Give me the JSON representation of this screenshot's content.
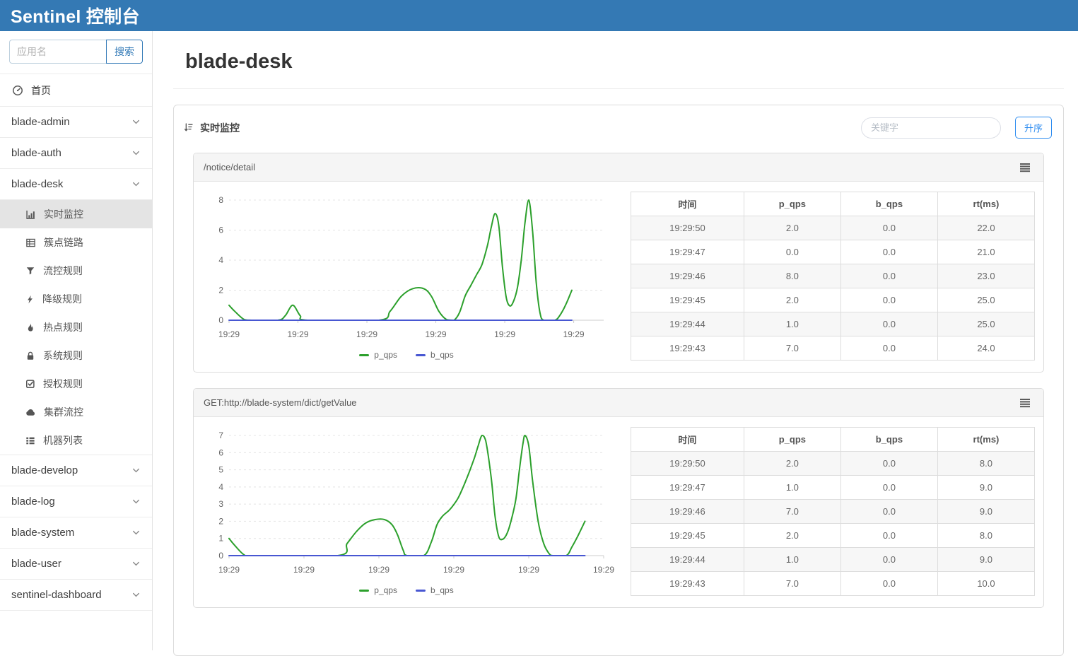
{
  "navbar": {
    "title": "Sentinel 控制台",
    "bg_color": "#3479b4"
  },
  "sidebar": {
    "search": {
      "placeholder": "应用名",
      "button_label": "搜索"
    },
    "home": {
      "label": "首页",
      "icon": "gauge-icon"
    },
    "apps": [
      {
        "label": "blade-admin",
        "expanded": false
      },
      {
        "label": "blade-auth",
        "expanded": false
      },
      {
        "label": "blade-desk",
        "expanded": true,
        "children": [
          {
            "label": "实时监控",
            "icon": "bar-chart-icon",
            "active": true
          },
          {
            "label": "簇点链路",
            "icon": "table-icon",
            "active": false
          },
          {
            "label": "流控规则",
            "icon": "filter-icon",
            "active": false
          },
          {
            "label": "降级规则",
            "icon": "bolt-icon",
            "active": false
          },
          {
            "label": "热点规则",
            "icon": "flame-icon",
            "active": false
          },
          {
            "label": "系统规则",
            "icon": "lock-icon",
            "active": false
          },
          {
            "label": "授权规则",
            "icon": "check-square-icon",
            "active": false
          },
          {
            "label": "集群流控",
            "icon": "cloud-icon",
            "active": false
          },
          {
            "label": "机器列表",
            "icon": "list-icon",
            "active": false
          }
        ]
      },
      {
        "label": "blade-develop",
        "expanded": false
      },
      {
        "label": "blade-log",
        "expanded": false
      },
      {
        "label": "blade-system",
        "expanded": false
      },
      {
        "label": "blade-user",
        "expanded": false
      },
      {
        "label": "sentinel-dashboard",
        "expanded": false
      }
    ]
  },
  "main": {
    "page_title": "blade-desk",
    "panel": {
      "title": "实时监控",
      "keyword_placeholder": "关键字",
      "sort_button_label": "升序"
    },
    "cards": [
      {
        "title": "/notice/detail",
        "chart_index": 0,
        "table": {
          "headers": [
            "时间",
            "p_qps",
            "b_qps",
            "rt(ms)"
          ],
          "rows": [
            [
              "19:29:50",
              "2.0",
              "0.0",
              "22.0"
            ],
            [
              "19:29:47",
              "0.0",
              "0.0",
              "21.0"
            ],
            [
              "19:29:46",
              "8.0",
              "0.0",
              "23.0"
            ],
            [
              "19:29:45",
              "2.0",
              "0.0",
              "25.0"
            ],
            [
              "19:29:44",
              "1.0",
              "0.0",
              "25.0"
            ],
            [
              "19:29:43",
              "7.0",
              "0.0",
              "24.0"
            ]
          ]
        }
      },
      {
        "title": "GET:http://blade-system/dict/getValue",
        "chart_index": 1,
        "table": {
          "headers": [
            "时间",
            "p_qps",
            "b_qps",
            "rt(ms)"
          ],
          "rows": [
            [
              "19:29:50",
              "2.0",
              "0.0",
              "8.0"
            ],
            [
              "19:29:47",
              "1.0",
              "0.0",
              "9.0"
            ],
            [
              "19:29:46",
              "7.0",
              "0.0",
              "9.0"
            ],
            [
              "19:29:45",
              "2.0",
              "0.0",
              "8.0"
            ],
            [
              "19:29:44",
              "1.0",
              "0.0",
              "9.0"
            ],
            [
              "19:29:43",
              "7.0",
              "0.0",
              "10.0"
            ]
          ]
        }
      }
    ]
  },
  "chart_data": [
    {
      "type": "line",
      "title": "/notice/detail",
      "xlabel": "",
      "ylabel": "",
      "x_axis_labels": [
        "19:29",
        "19:29",
        "19:29",
        "19:29",
        "19:29",
        "19:29"
      ],
      "x_label_span": 0.92,
      "ylim": [
        0,
        8
      ],
      "y_ticks": [
        0,
        2,
        4,
        6,
        8
      ],
      "grid": "dashed-horizontal",
      "legend_position": "bottom",
      "series": [
        {
          "name": "p_qps",
          "color": "#2ca02c",
          "points": [
            [
              0.0,
              1.0
            ],
            [
              0.015,
              0.6
            ],
            [
              0.04,
              0.05
            ],
            [
              0.06,
              0.0
            ],
            [
              0.13,
              0.0
            ],
            [
              0.15,
              0.3
            ],
            [
              0.17,
              1.0
            ],
            [
              0.19,
              0.3
            ],
            [
              0.21,
              0.0
            ],
            [
              0.4,
              0.0
            ],
            [
              0.43,
              0.6
            ],
            [
              0.46,
              1.6
            ],
            [
              0.49,
              2.1
            ],
            [
              0.52,
              2.1
            ],
            [
              0.54,
              1.6
            ],
            [
              0.56,
              0.6
            ],
            [
              0.58,
              0.05
            ],
            [
              0.6,
              0.0
            ],
            [
              0.615,
              0.5
            ],
            [
              0.63,
              1.6
            ],
            [
              0.645,
              2.3
            ],
            [
              0.66,
              3.0
            ],
            [
              0.675,
              3.7
            ],
            [
              0.69,
              5.0
            ],
            [
              0.7,
              6.2
            ],
            [
              0.71,
              7.1
            ],
            [
              0.72,
              6.3
            ],
            [
              0.73,
              3.5
            ],
            [
              0.74,
              1.5
            ],
            [
              0.75,
              0.95
            ],
            [
              0.76,
              1.3
            ],
            [
              0.77,
              2.2
            ],
            [
              0.78,
              4.0
            ],
            [
              0.79,
              6.5
            ],
            [
              0.8,
              8.0
            ],
            [
              0.81,
              6.0
            ],
            [
              0.82,
              2.5
            ],
            [
              0.83,
              0.5
            ],
            [
              0.84,
              0.0
            ],
            [
              0.87,
              0.0
            ],
            [
              0.885,
              0.4
            ],
            [
              0.9,
              1.1
            ],
            [
              0.915,
              2.0
            ]
          ]
        },
        {
          "name": "b_qps",
          "color": "#4857d2",
          "points": [
            [
              0.0,
              0.0
            ],
            [
              0.915,
              0.0
            ]
          ]
        }
      ]
    },
    {
      "type": "line",
      "title": "GET:http://blade-system/dict/getValue",
      "xlabel": "",
      "ylabel": "",
      "x_axis_labels": [
        "19:29",
        "19:29",
        "19:29",
        "19:29",
        "19:29",
        "19:29"
      ],
      "x_label_span": 1.0,
      "ylim": [
        0,
        7
      ],
      "y_ticks": [
        0,
        1,
        2,
        3,
        4,
        5,
        6,
        7
      ],
      "grid": "dashed-horizontal",
      "legend_position": "bottom",
      "series": [
        {
          "name": "p_qps",
          "color": "#2ca02c",
          "points": [
            [
              0.0,
              1.0
            ],
            [
              0.015,
              0.6
            ],
            [
              0.04,
              0.05
            ],
            [
              0.06,
              0.0
            ],
            [
              0.29,
              0.0
            ],
            [
              0.315,
              0.7
            ],
            [
              0.34,
              1.4
            ],
            [
              0.365,
              1.9
            ],
            [
              0.39,
              2.1
            ],
            [
              0.415,
              2.1
            ],
            [
              0.435,
              1.8
            ],
            [
              0.45,
              1.2
            ],
            [
              0.465,
              0.3
            ],
            [
              0.475,
              0.0
            ],
            [
              0.52,
              0.0
            ],
            [
              0.54,
              0.8
            ],
            [
              0.555,
              1.8
            ],
            [
              0.57,
              2.3
            ],
            [
              0.59,
              2.7
            ],
            [
              0.61,
              3.3
            ],
            [
              0.625,
              4.0
            ],
            [
              0.64,
              4.8
            ],
            [
              0.655,
              5.7
            ],
            [
              0.665,
              6.4
            ],
            [
              0.675,
              7.0
            ],
            [
              0.685,
              6.7
            ],
            [
              0.7,
              4.5
            ],
            [
              0.71,
              2.3
            ],
            [
              0.72,
              1.1
            ],
            [
              0.73,
              0.95
            ],
            [
              0.74,
              1.2
            ],
            [
              0.75,
              1.8
            ],
            [
              0.765,
              3.2
            ],
            [
              0.775,
              5.0
            ],
            [
              0.785,
              6.6
            ],
            [
              0.79,
              7.0
            ],
            [
              0.8,
              6.4
            ],
            [
              0.81,
              4.4
            ],
            [
              0.825,
              2.0
            ],
            [
              0.84,
              0.7
            ],
            [
              0.855,
              0.1
            ],
            [
              0.865,
              0.0
            ],
            [
              0.9,
              0.0
            ],
            [
              0.915,
              0.5
            ],
            [
              0.93,
              1.1
            ],
            [
              0.95,
              2.0
            ]
          ]
        },
        {
          "name": "b_qps",
          "color": "#4857d2",
          "points": [
            [
              0.0,
              0.0
            ],
            [
              0.95,
              0.0
            ]
          ]
        }
      ]
    }
  ]
}
